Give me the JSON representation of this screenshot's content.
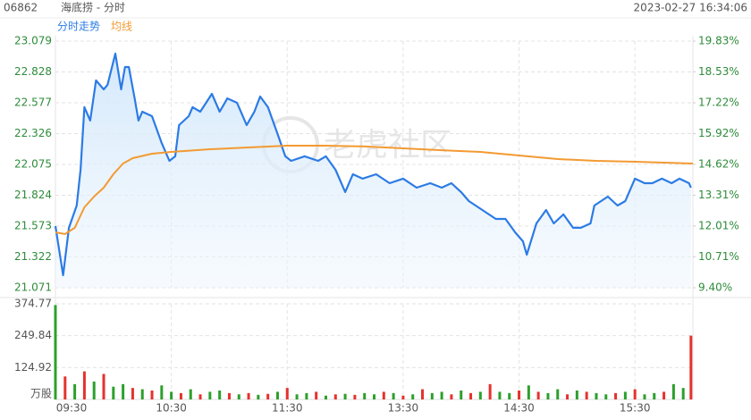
{
  "header": {
    "code": "06862",
    "name": "海底捞 - 分时",
    "timestamp": "2023-02-27 16:34:06",
    "watermark": "老虎社区"
  },
  "chart_data": [
    {
      "type": "line",
      "series": [
        {
          "name": "分时走势",
          "color": "#2c7be5",
          "x": [
            0,
            4,
            7,
            11,
            13,
            15,
            18,
            21,
            25,
            27,
            31,
            34,
            36,
            38,
            41,
            43,
            45,
            50,
            55,
            59,
            62,
            64,
            69,
            71,
            75,
            81,
            85,
            89,
            94,
            99,
            103,
            106,
            110,
            115,
            119,
            122,
            129,
            136,
            140,
            145,
            150,
            154,
            159,
            166,
            173,
            180,
            187,
            194,
            200,
            205,
            210,
            214,
            221,
            228,
            233,
            238,
            242,
            244,
            249,
            254,
            258,
            263,
            268,
            272,
            277,
            279,
            286,
            291,
            295,
            300,
            305,
            309,
            314,
            319,
            323,
            328,
            329
          ],
          "values": [
            21.573,
            21.173,
            21.559,
            21.74,
            22.031,
            22.541,
            22.432,
            22.759,
            22.686,
            22.723,
            22.977,
            22.686,
            22.868,
            22.868,
            22.613,
            22.432,
            22.504,
            22.468,
            22.25,
            22.104,
            22.141,
            22.395,
            22.468,
            22.541,
            22.504,
            22.65,
            22.504,
            22.613,
            22.577,
            22.395,
            22.504,
            22.628,
            22.541,
            22.322,
            22.141,
            22.104,
            22.141,
            22.104,
            22.141,
            22.031,
            21.85,
            21.995,
            21.959,
            21.995,
            21.922,
            21.959,
            21.886,
            21.922,
            21.886,
            21.922,
            21.85,
            21.777,
            21.704,
            21.631,
            21.631,
            21.522,
            21.449,
            21.34,
            21.595,
            21.704,
            21.595,
            21.668,
            21.559,
            21.559,
            21.595,
            21.74,
            21.813,
            21.74,
            21.777,
            21.959,
            21.922,
            21.922,
            21.959,
            21.922,
            21.959,
            21.922,
            21.886
          ]
        },
        {
          "name": "均线",
          "color": "#f39a32",
          "x": [
            0,
            5,
            10,
            15,
            20,
            25,
            30,
            35,
            40,
            50,
            60,
            80,
            100,
            120,
            140,
            160,
            180,
            200,
            220,
            240,
            260,
            280,
            300,
            330
          ],
          "values": [
            21.522,
            21.508,
            21.559,
            21.726,
            21.813,
            21.886,
            21.995,
            22.082,
            22.126,
            22.162,
            22.177,
            22.199,
            22.213,
            22.228,
            22.228,
            22.221,
            22.206,
            22.191,
            22.177,
            22.148,
            22.119,
            22.104,
            22.097,
            22.082
          ]
        }
      ],
      "xlim": [
        0,
        330
      ],
      "ylim": [
        21.071,
        23.079
      ],
      "yticks": [
        21.071,
        21.322,
        21.573,
        21.824,
        22.075,
        22.326,
        22.577,
        22.828,
        23.079
      ],
      "y2lim": [
        9.4,
        19.83
      ],
      "y2ticks": [
        {
          "value": 9.4,
          "label": "9.40%"
        },
        {
          "value": 10.71,
          "label": "10.71%"
        },
        {
          "value": 12.01,
          "label": "12.01%"
        },
        {
          "value": 13.31,
          "label": "13.31%"
        },
        {
          "value": 14.62,
          "label": "14.62%"
        },
        {
          "value": 15.92,
          "label": "15.92%"
        },
        {
          "value": 17.22,
          "label": "17.22%"
        },
        {
          "value": 18.53,
          "label": "18.53%"
        },
        {
          "value": 19.83,
          "label": "19.83%"
        }
      ],
      "grid": true
    },
    {
      "type": "bar",
      "y_label": "万股",
      "x": [
        0,
        5,
        10,
        15,
        20,
        25,
        30,
        35,
        40,
        45,
        50,
        55,
        60,
        65,
        70,
        75,
        80,
        85,
        90,
        95,
        100,
        105,
        110,
        115,
        120,
        125,
        130,
        135,
        140,
        145,
        150,
        155,
        160,
        165,
        170,
        175,
        180,
        185,
        190,
        195,
        200,
        205,
        210,
        215,
        220,
        225,
        230,
        235,
        240,
        245,
        250,
        255,
        260,
        265,
        270,
        275,
        280,
        285,
        290,
        295,
        300,
        305,
        310,
        315,
        320,
        325,
        329
      ],
      "values": [
        370,
        90,
        60,
        110,
        70,
        100,
        50,
        60,
        45,
        40,
        35,
        55,
        30,
        25,
        40,
        20,
        30,
        35,
        25,
        20,
        25,
        18,
        22,
        30,
        45,
        20,
        25,
        30,
        15,
        20,
        22,
        18,
        25,
        20,
        30,
        25,
        15,
        20,
        40,
        25,
        30,
        20,
        35,
        25,
        30,
        60,
        30,
        25,
        35,
        55,
        30,
        25,
        40,
        20,
        35,
        30,
        25,
        20,
        25,
        30,
        40,
        20,
        25,
        30,
        60,
        45,
        250
      ],
      "colors": [
        "#2ca02c",
        "#e5322d",
        "#2ca02c",
        "#e5322d",
        "#2ca02c",
        "#e5322d",
        "#2ca02c",
        "#2ca02c",
        "#e5322d",
        "#2ca02c",
        "#e5322d",
        "#2ca02c",
        "#2ca02c",
        "#e5322d",
        "#2ca02c",
        "#e5322d",
        "#2ca02c",
        "#2ca02c",
        "#e5322d",
        "#2ca02c",
        "#e5322d",
        "#2ca02c",
        "#e5322d",
        "#2ca02c",
        "#e5322d",
        "#2ca02c",
        "#2ca02c",
        "#e5322d",
        "#2ca02c",
        "#e5322d",
        "#2ca02c",
        "#e5322d",
        "#2ca02c",
        "#2ca02c",
        "#e5322d",
        "#2ca02c",
        "#e5322d",
        "#2ca02c",
        "#e5322d",
        "#2ca02c",
        "#2ca02c",
        "#e5322d",
        "#2ca02c",
        "#e5322d",
        "#2ca02c",
        "#e5322d",
        "#2ca02c",
        "#2ca02c",
        "#e5322d",
        "#2ca02c",
        "#e5322d",
        "#2ca02c",
        "#2ca02c",
        "#e5322d",
        "#2ca02c",
        "#e5322d",
        "#2ca02c",
        "#2ca02c",
        "#e5322d",
        "#2ca02c",
        "#e5322d",
        "#2ca02c",
        "#2ca02c",
        "#e5322d",
        "#2ca02c",
        "#2ca02c",
        "#e5322d"
      ],
      "xlim": [
        0,
        330
      ],
      "xticks": [
        {
          "value": 0,
          "label": "09:30"
        },
        {
          "value": 60,
          "label": "10:30"
        },
        {
          "value": 120,
          "label": "11:30"
        },
        {
          "value": 180,
          "label": "13:30"
        },
        {
          "value": 240,
          "label": "14:30"
        },
        {
          "value": 300,
          "label": "15:30"
        }
      ],
      "ylim": [
        0,
        374.77
      ],
      "yticks": [
        124.92,
        249.84,
        374.77
      ],
      "grid": true
    }
  ]
}
